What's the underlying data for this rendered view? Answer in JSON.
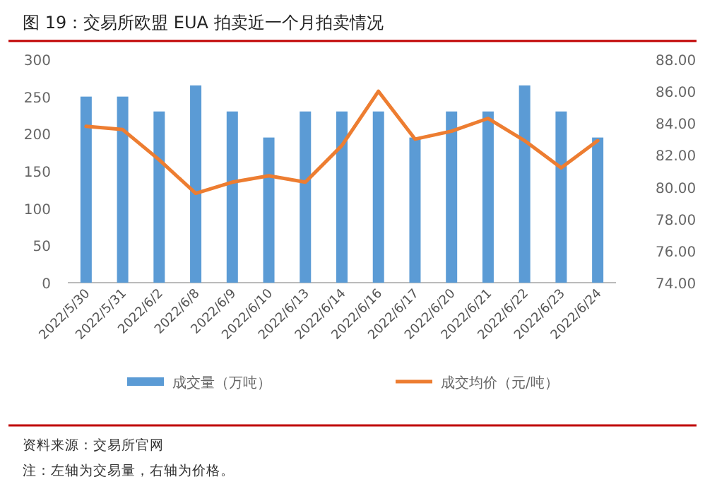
{
  "chart_data": {
    "type": "bar",
    "title": "图 19：交易所欧盟 EUA 拍卖近一个月拍卖情况",
    "categories": [
      "2022/5/30",
      "2022/5/31",
      "2022/6/2",
      "2022/6/8",
      "2022/6/9",
      "2022/6/10",
      "2022/6/13",
      "2022/6/14",
      "2022/6/16",
      "2022/6/17",
      "2022/6/20",
      "2022/6/21",
      "2022/6/22",
      "2022/6/23",
      "2022/6/24"
    ],
    "series": [
      {
        "name": "成交量（万吨）",
        "color": "#5b9bd5",
        "values": [
          250,
          250,
          230,
          265,
          230,
          195,
          230,
          230,
          230,
          195,
          230,
          230,
          265,
          230,
          195
        ]
      },
      {
        "name": "成交均价（元/吨）",
        "type": "line",
        "axis": "y2",
        "color": "#ed7d31",
        "values": [
          83.8,
          83.6,
          81.7,
          79.6,
          80.3,
          80.7,
          80.3,
          82.6,
          86.0,
          83.0,
          83.5,
          84.3,
          82.9,
          81.2,
          82.9
        ]
      }
    ],
    "ylim": [
      0,
      300
    ],
    "yticks": [
      0,
      50,
      100,
      150,
      200,
      250,
      300
    ],
    "y2lim": [
      74,
      88
    ],
    "y2ticks": [
      {
        "value": 74,
        "label": "74.00"
      },
      {
        "value": 76,
        "label": "76.00"
      },
      {
        "value": 78,
        "label": "78.00"
      },
      {
        "value": 80,
        "label": "80.00"
      },
      {
        "value": 82,
        "label": "82.00"
      },
      {
        "value": 84,
        "label": "84.00"
      },
      {
        "value": 86,
        "label": "86.00"
      },
      {
        "value": 88,
        "label": "88.00"
      }
    ],
    "grid": false,
    "legend": "bottom",
    "annotations": [
      "资料来源：交易所官网",
      "注：左轴为交易量，右轴为价格。"
    ]
  }
}
